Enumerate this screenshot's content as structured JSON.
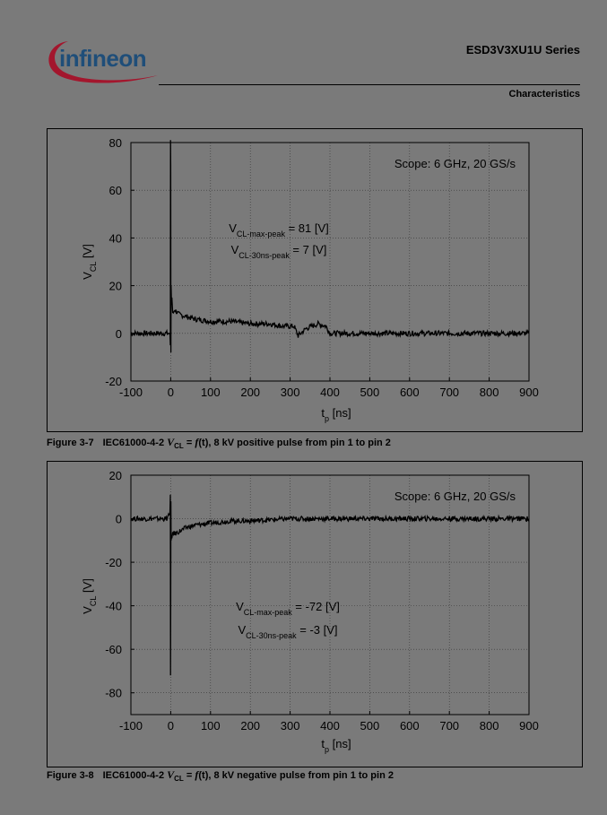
{
  "header": {
    "brand": "infineon",
    "series": "ESD3V3XU1U Series",
    "section": "Characteristics"
  },
  "colors": {
    "page_background": "#7a7a7a",
    "logo_blue": "#1f4e79",
    "logo_red": "#a3162d"
  },
  "figures": [
    {
      "number": "Figure 3-7",
      "caption_prefix": "IEC61000-4-2",
      "caption_v": "V",
      "caption_v_sub": "CL",
      "caption_eq": " = ",
      "caption_f": "f",
      "caption_t": "(t)",
      "caption_rest": ", 8 kV positive pulse from pin 1 to pin 2",
      "scope_note": "Scope: 6 GHz, 20 GS/s",
      "ann1": {
        "pre": "V",
        "sub": "CL-max-peak",
        "post": " = 81 [V]"
      },
      "ann2": {
        "pre": "V",
        "sub": "CL-30ns-peak",
        "post": " = 7 [V]"
      },
      "ylabel": {
        "pre": "V",
        "sub": "CL",
        "post": " [V]"
      },
      "xlabel": {
        "pre": "t",
        "sub": "p",
        "post": " [ns]"
      }
    },
    {
      "number": "Figure 3-8",
      "caption_prefix": "IEC61000-4-2",
      "caption_v": "V",
      "caption_v_sub": "CL",
      "caption_eq": " = ",
      "caption_f": "f",
      "caption_t": "(t)",
      "caption_rest": ", 8 kV negative pulse from pin 1 to pin 2",
      "scope_note": "Scope: 6 GHz, 20 GS/s",
      "ann1": {
        "pre": "V",
        "sub": "CL-max-peak",
        "post": " = -72 [V]"
      },
      "ann2": {
        "pre": "V",
        "sub": "CL-30ns-peak",
        "post": " = -3 [V]"
      },
      "ylabel": {
        "pre": "V",
        "sub": "CL",
        "post": " [V]"
      },
      "xlabel": {
        "pre": "t",
        "sub": "p",
        "post": " [ns]"
      }
    }
  ],
  "chart_data": [
    {
      "type": "line",
      "xlim": [
        -100,
        900
      ],
      "ylim": [
        -20,
        80
      ],
      "xticks": [
        -100,
        0,
        100,
        200,
        300,
        400,
        500,
        600,
        700,
        800,
        900
      ],
      "yticks": [
        -20,
        0,
        20,
        40,
        60,
        80
      ],
      "grid": true,
      "series": [
        {
          "x": [
            -100,
            -50,
            -10,
            -2,
            -1,
            -0.5,
            0,
            0.5,
            1,
            2,
            3,
            5,
            10,
            20,
            40,
            60,
            100,
            150,
            200,
            250,
            280,
            300,
            310,
            320,
            340,
            370,
            390,
            400,
            420,
            450,
            500,
            600,
            700,
            800,
            900
          ],
          "y": [
            0,
            0,
            0,
            0,
            -5,
            81,
            70,
            -8,
            20,
            12,
            15,
            8,
            10,
            8,
            7,
            6,
            5,
            5,
            4,
            4,
            3,
            3,
            3,
            -1,
            2,
            4,
            3,
            0,
            0,
            0,
            0,
            0,
            0,
            0,
            0
          ]
        }
      ]
    },
    {
      "type": "line",
      "xlim": [
        -100,
        900
      ],
      "ylim": [
        -90,
        20
      ],
      "xticks": [
        -100,
        0,
        100,
        200,
        300,
        400,
        500,
        600,
        700,
        800,
        900
      ],
      "yticks": [
        -80,
        -60,
        -40,
        -20,
        0,
        20
      ],
      "grid": true,
      "series": [
        {
          "x": [
            -100,
            -50,
            -10,
            -2,
            -1,
            -0.5,
            0,
            0.5,
            1,
            2,
            3,
            5,
            10,
            20,
            40,
            60,
            100,
            150,
            200,
            300,
            400,
            500,
            600,
            700,
            800,
            900
          ],
          "y": [
            0,
            0,
            0,
            2,
            11,
            -72,
            -40,
            8,
            -10,
            -8,
            -9,
            -6,
            -7,
            -6,
            -4,
            -3,
            -2,
            -1,
            -1,
            0,
            0,
            0,
            0,
            0,
            0,
            0
          ]
        }
      ]
    }
  ]
}
